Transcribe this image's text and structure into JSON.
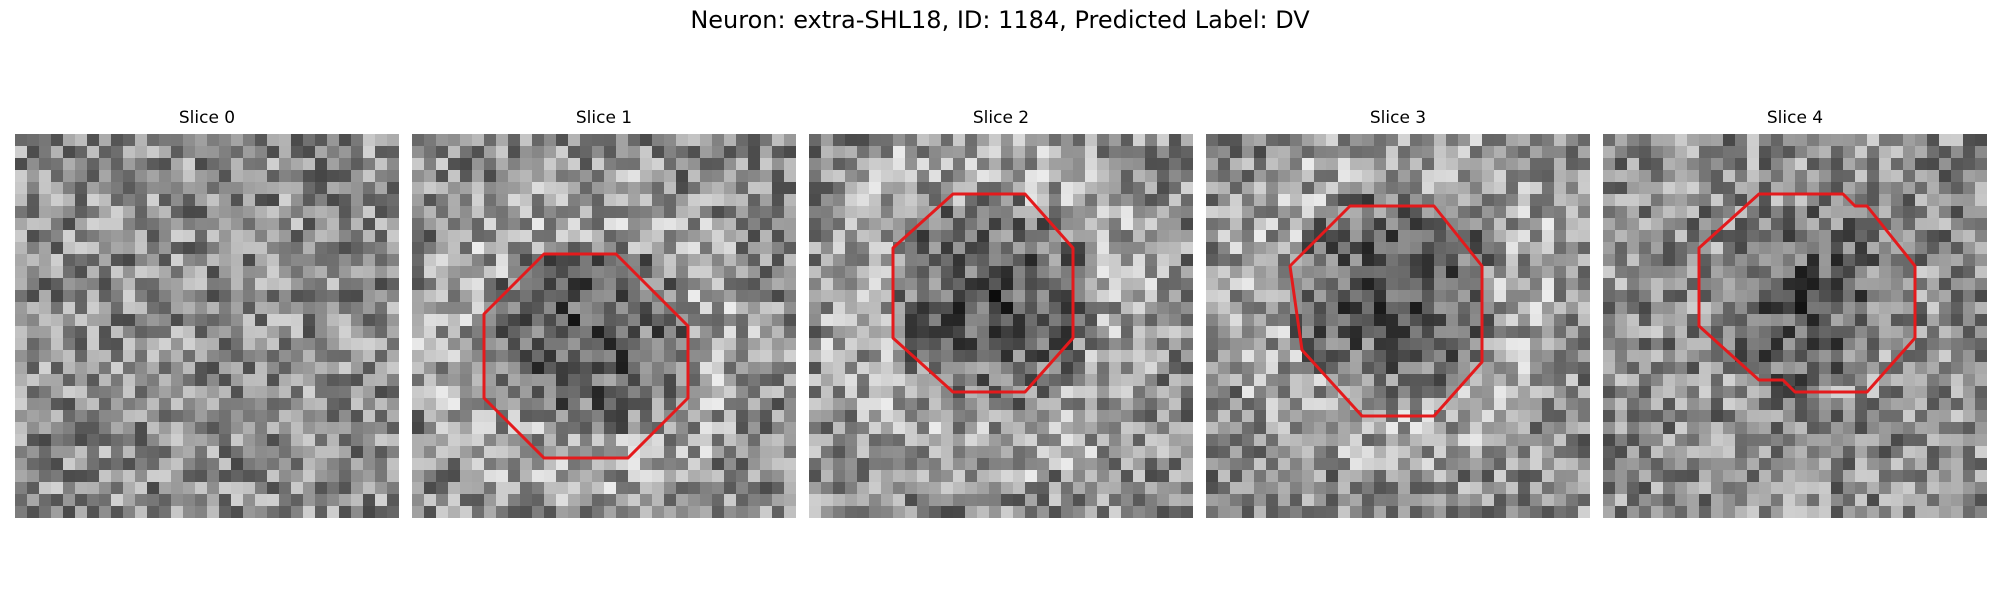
{
  "figure": {
    "title": "Neuron: extra-SHL18, ID: 1184, Predicted Label: DV",
    "grid_size": 32,
    "contour_color": "#e41a1c",
    "slices": [
      {
        "label": "Slice 0",
        "seed": 11,
        "dark_blob": null,
        "bright_ring": false,
        "contour": null
      },
      {
        "label": "Slice 1",
        "seed": 23,
        "dark_blob": {
          "cx": 14.0,
          "cy": 16.5,
          "r": 8.5
        },
        "bright_ring": true,
        "contour": [
          [
            11,
            10
          ],
          [
            17,
            10
          ],
          [
            23,
            16
          ],
          [
            23,
            22
          ],
          [
            18,
            27
          ],
          [
            11,
            27
          ],
          [
            6,
            22
          ],
          [
            6,
            15
          ]
        ]
      },
      {
        "label": "Slice 2",
        "seed": 37,
        "dark_blob": {
          "cx": 15.0,
          "cy": 13.5,
          "r": 9.0
        },
        "bright_ring": true,
        "contour": [
          [
            12,
            5
          ],
          [
            18,
            5
          ],
          [
            22,
            9.5
          ],
          [
            22,
            17
          ],
          [
            18,
            21.5
          ],
          [
            12,
            21.5
          ],
          [
            7,
            17
          ],
          [
            7,
            9.5
          ]
        ]
      },
      {
        "label": "Slice 3",
        "seed": 53,
        "dark_blob": {
          "cx": 15.0,
          "cy": 12.5,
          "r": 9.0
        },
        "bright_ring": true,
        "contour": [
          [
            12,
            6
          ],
          [
            19,
            6
          ],
          [
            23,
            11
          ],
          [
            23,
            19
          ],
          [
            19,
            23.5
          ],
          [
            13,
            23.5
          ],
          [
            8,
            18
          ],
          [
            7,
            11
          ]
        ]
      },
      {
        "label": "Slice 4",
        "seed": 71,
        "dark_blob": {
          "cx": 16.0,
          "cy": 13.5,
          "r": 8.0
        },
        "bright_ring": false,
        "contour": [
          [
            13,
            5
          ],
          [
            20,
            5
          ],
          [
            21,
            6
          ],
          [
            22,
            6
          ],
          [
            26,
            11
          ],
          [
            26,
            17
          ],
          [
            22,
            21.5
          ],
          [
            16,
            21.5
          ],
          [
            15,
            20.5
          ],
          [
            13,
            20.5
          ],
          [
            8,
            16
          ],
          [
            8,
            9.5
          ]
        ]
      }
    ]
  }
}
